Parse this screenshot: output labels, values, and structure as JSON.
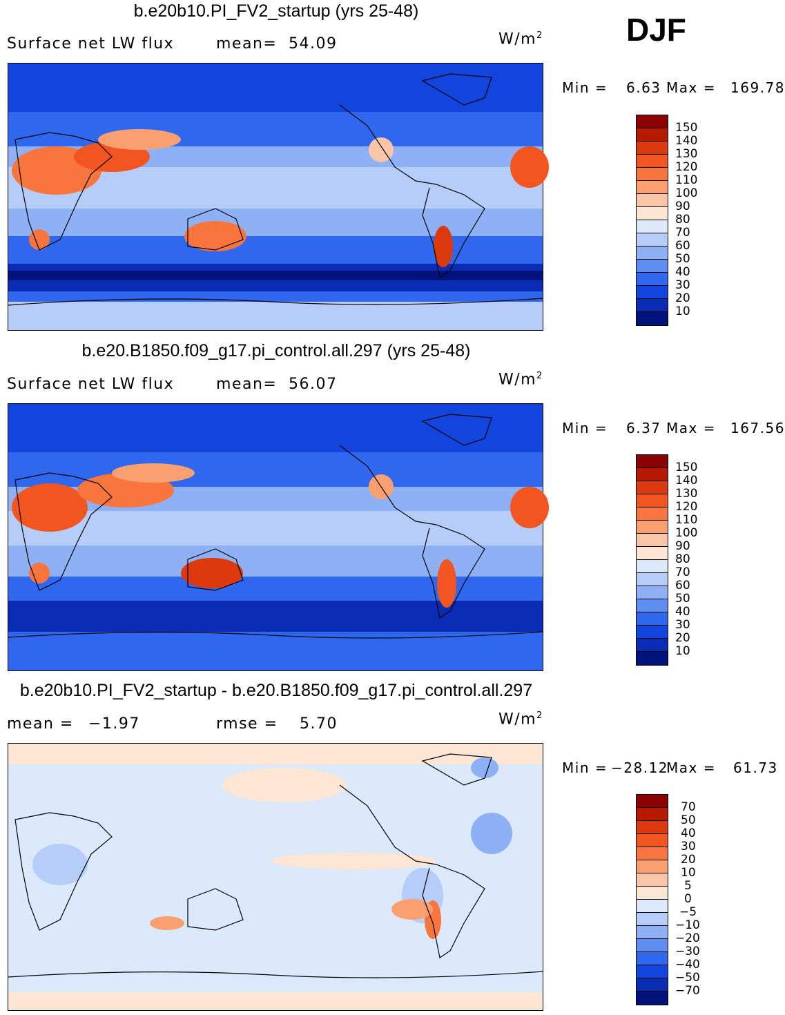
{
  "season": "DJF",
  "panels": [
    {
      "title": "b.e20b10.PI_FV2_startup (yrs 25-48)",
      "variable": "Surface net LW flux",
      "stat_label": "mean=",
      "stat_value": "54.09",
      "units_base": "W/m",
      "units_exp": "2",
      "min_label": "Min =",
      "min_value": "6.63",
      "max_label": "Max =",
      "max_value": "169.78",
      "levels": [
        "150",
        "140",
        "130",
        "120",
        "110",
        "100",
        "90",
        "80",
        "70",
        "60",
        "50",
        "40",
        "30",
        "20",
        "10"
      ]
    },
    {
      "title": "b.e20.B1850.f09_g17.pi_control.all.297 (yrs 25-48)",
      "variable": "Surface net LW flux",
      "stat_label": "mean=",
      "stat_value": "56.07",
      "units_base": "W/m",
      "units_exp": "2",
      "min_label": "Min =",
      "min_value": "6.37",
      "max_label": "Max =",
      "max_value": "167.56",
      "levels": [
        "150",
        "140",
        "130",
        "120",
        "110",
        "100",
        "90",
        "80",
        "70",
        "60",
        "50",
        "40",
        "30",
        "20",
        "10"
      ]
    },
    {
      "title": "b.e20b10.PI_FV2_startup - b.e20.B1850.f09_g17.pi_control.all.297",
      "stat_label": "mean =",
      "stat_value": "−1.97",
      "stat2_label": "rmse =",
      "stat2_value": "5.70",
      "units_base": "W/m",
      "units_exp": "2",
      "min_label": "Min =",
      "min_value": "−28.12",
      "max_label": "Max =",
      "max_value": "61.73",
      "levels": [
        "70",
        "50",
        "40",
        "30",
        "20",
        "10",
        "5",
        "0",
        "−5",
        "−10",
        "−20",
        "−30",
        "−40",
        "−50",
        "−70"
      ]
    }
  ],
  "colors": {
    "scale": [
      "#8b0000",
      "#b51a00",
      "#dc3a0e",
      "#f2551f",
      "#f8763d",
      "#faa070",
      "#fbc6a8",
      "#fde6d3",
      "#dce9fb",
      "#b5cdf8",
      "#8eb1f5",
      "#5e8ef0",
      "#2f68ee",
      "#1245dd",
      "#0a2cb5",
      "#00137a"
    ]
  }
}
